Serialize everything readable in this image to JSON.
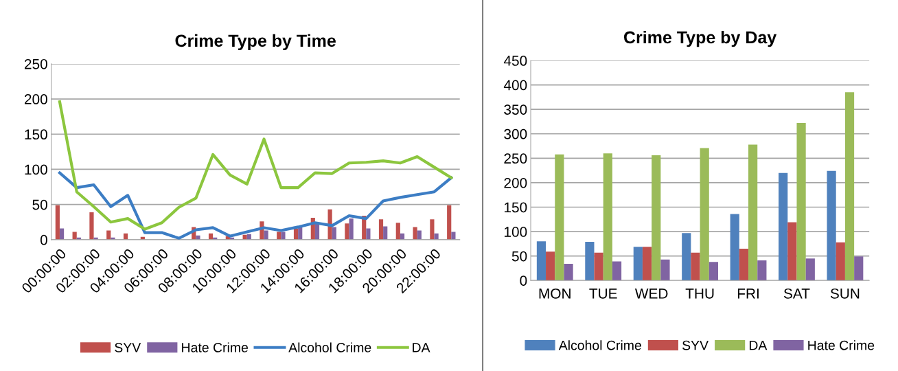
{
  "chart_data": [
    {
      "type": "bar",
      "title": "Crime Type by Time",
      "categories": [
        "00:00:00",
        null,
        "02:00:00",
        null,
        "04:00:00",
        null,
        "06:00:00",
        null,
        "08:00:00",
        null,
        "10:00:00",
        null,
        "12:00:00",
        null,
        "14:00:00",
        null,
        "16:00:00",
        null,
        "18:00:00",
        null,
        "20:00:00",
        null,
        "22:00:00",
        null
      ],
      "series": [
        {
          "name": "SYV",
          "type": "bar",
          "color": "#c0504d",
          "values": [
            49,
            11,
            39,
            13,
            9,
            4,
            0,
            null,
            18,
            9,
            5,
            7,
            26,
            11,
            16,
            31,
            43,
            23,
            34,
            29,
            24,
            18,
            29,
            49
          ]
        },
        {
          "name": "Hate Crime",
          "type": "bar",
          "color": "#8064a2",
          "values": [
            16,
            3,
            3,
            3,
            null,
            0,
            0,
            null,
            6,
            3,
            3,
            8,
            13,
            11,
            18,
            23,
            18,
            30,
            16,
            19,
            9,
            13,
            9,
            11
          ]
        },
        {
          "name": "Alcohol Crime",
          "type": "line",
          "color": "#3c7dc4",
          "values": [
            95,
            74,
            78,
            47,
            63,
            10,
            10,
            2,
            14,
            17,
            5,
            11,
            17,
            13,
            18,
            24,
            20,
            34,
            30,
            55,
            60,
            64,
            68,
            88
          ]
        },
        {
          "name": "DA",
          "type": "line",
          "color": "#8cc63e",
          "values": [
            196,
            68,
            47,
            25,
            30,
            15,
            24,
            46,
            59,
            121,
            92,
            79,
            143,
            74,
            74,
            95,
            94,
            109,
            110,
            112,
            109,
            118,
            103,
            88
          ]
        }
      ],
      "ylim": [
        0,
        250
      ],
      "yticks": [
        0,
        50,
        100,
        150,
        200,
        250
      ],
      "grid": "y",
      "legend": "bottom"
    },
    {
      "type": "bar",
      "title": "Crime Type by Day",
      "categories": [
        "MON",
        "TUE",
        "WED",
        "THU",
        "FRI",
        "SAT",
        "SUN"
      ],
      "series": [
        {
          "name": "Alcohol Crime",
          "color": "#4f81bd",
          "values": [
            80,
            79,
            69,
            97,
            136,
            220,
            224
          ]
        },
        {
          "name": "SYV",
          "color": "#c0504d",
          "values": [
            59,
            57,
            69,
            57,
            65,
            119,
            78
          ]
        },
        {
          "name": "DA",
          "color": "#9bbb59",
          "values": [
            258,
            260,
            256,
            271,
            278,
            322,
            385
          ]
        },
        {
          "name": "Hate Crime",
          "color": "#8064a2",
          "values": [
            34,
            39,
            43,
            38,
            41,
            45,
            49
          ]
        }
      ],
      "ylim": [
        0,
        450
      ],
      "yticks": [
        0,
        50,
        100,
        150,
        200,
        250,
        300,
        350,
        400,
        450
      ],
      "grid": "y",
      "legend": "bottom"
    }
  ]
}
